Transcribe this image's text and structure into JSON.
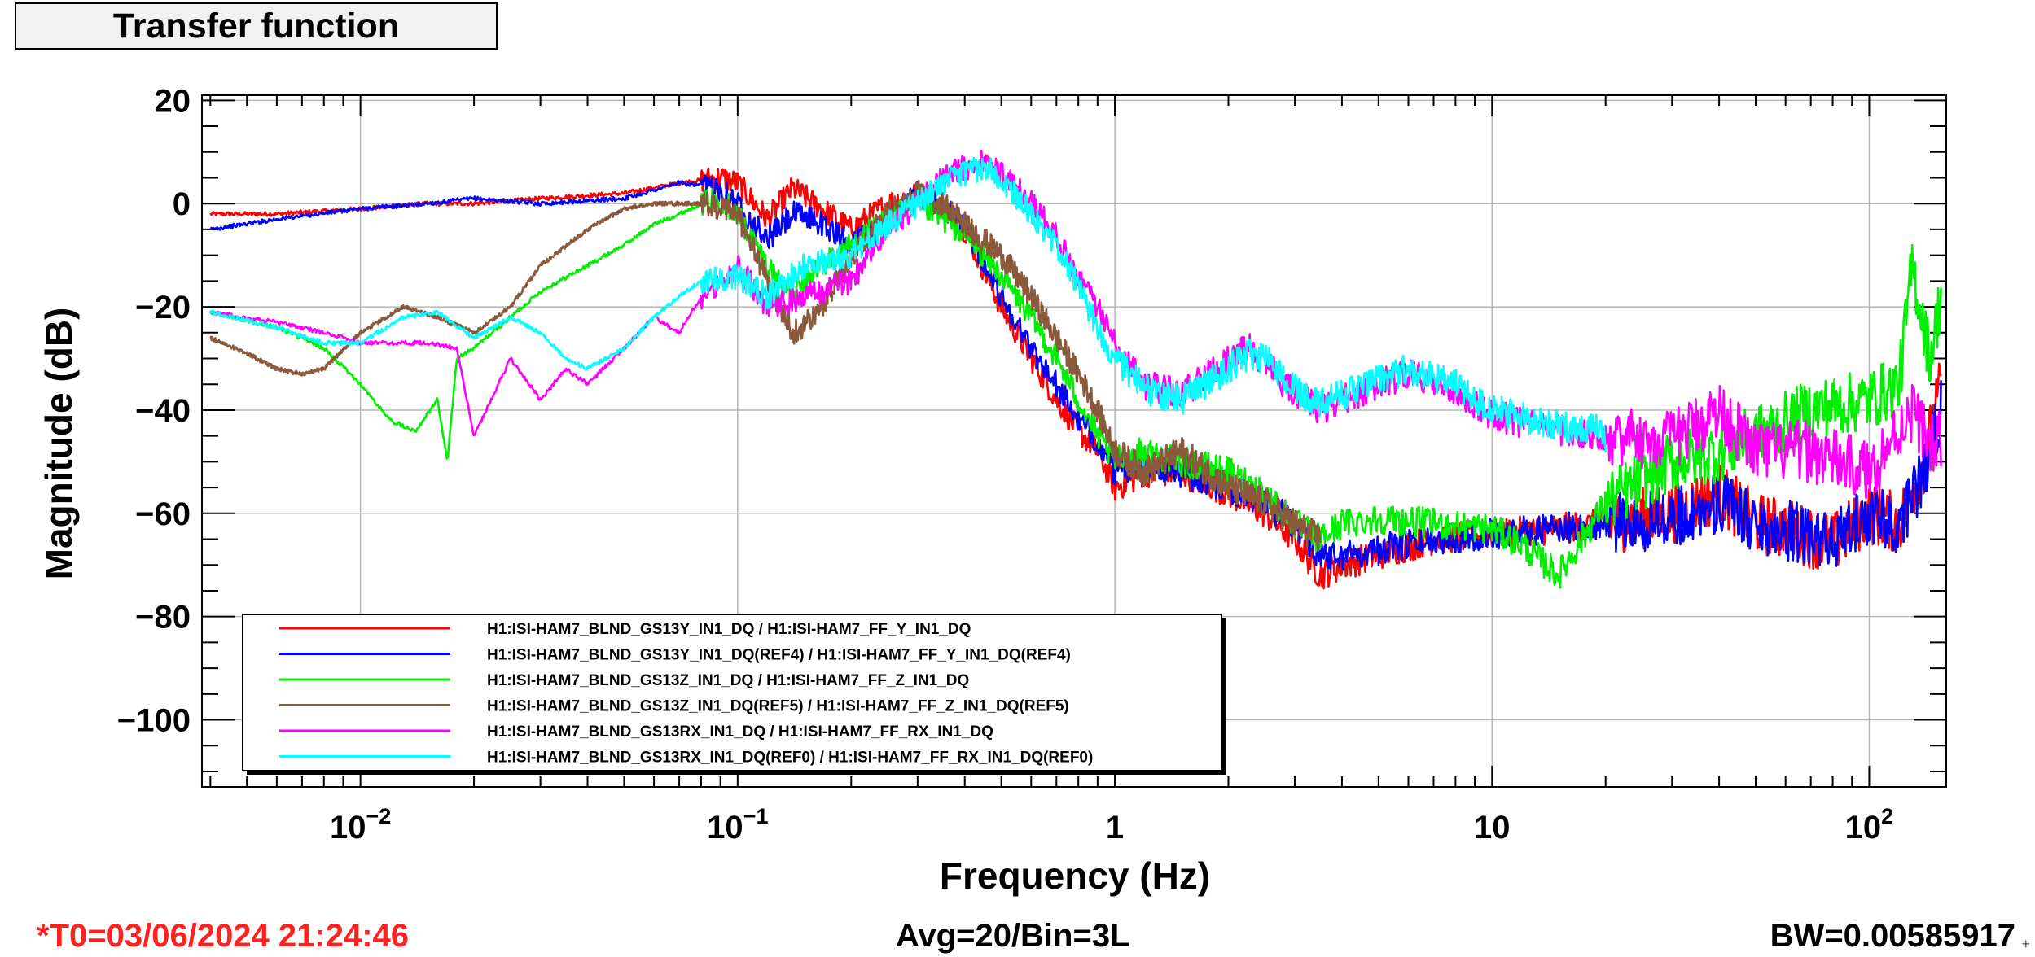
{
  "panel_title": "Transfer function",
  "footer": {
    "t0": "*T0=03/06/2024 21:24:46",
    "avg": "Avg=20/Bin=3L",
    "bw": "BW=0.00585917"
  },
  "colors": {
    "t0_text": "#ff2020",
    "grid": "#b8b8b8"
  },
  "chart_data": {
    "type": "line",
    "xscale": "log",
    "xlabel": "Frequency (Hz)",
    "ylabel": "Magnitude (dB)",
    "xlim": [
      0.0038,
      160
    ],
    "ylim": [
      -113,
      21
    ],
    "grid": true,
    "legend_placement": "bottom-left",
    "x_ticks": [
      {
        "value": 0.01,
        "base": "10",
        "exp": "−2"
      },
      {
        "value": 0.1,
        "base": "10",
        "exp": "−1"
      },
      {
        "value": 1,
        "base": "1",
        "exp": ""
      },
      {
        "value": 10,
        "base": "10",
        "exp": ""
      },
      {
        "value": 100,
        "base": "10",
        "exp": "2"
      }
    ],
    "y_ticks": [
      {
        "value": 20,
        "label": "20"
      },
      {
        "value": 0,
        "label": "0"
      },
      {
        "value": -20,
        "label": "−20"
      },
      {
        "value": -40,
        "label": "−40"
      },
      {
        "value": -60,
        "label": "−60"
      },
      {
        "value": -80,
        "label": "−80"
      },
      {
        "value": -100,
        "label": "−100"
      }
    ],
    "series": [
      {
        "name": "H1:ISI-HAM7_BLND_GS13Y_IN1_DQ / H1:ISI-HAM7_FF_Y_IN1_DQ",
        "color": "#ff0000",
        "x": [
          0.004,
          0.006,
          0.01,
          0.015,
          0.02,
          0.03,
          0.05,
          0.07,
          0.09,
          0.1,
          0.12,
          0.14,
          0.16,
          0.2,
          0.25,
          0.3,
          0.35,
          0.4,
          0.5,
          0.6,
          0.7,
          0.8,
          0.9,
          1.0,
          1.2,
          1.5,
          2.0,
          2.5,
          3.0,
          3.5,
          4.0,
          5.0,
          7.0,
          10,
          15,
          20,
          30,
          40,
          50,
          60,
          80,
          100,
          120,
          140,
          155
        ],
        "y": [
          -2,
          -2,
          -1,
          0,
          0,
          1,
          2,
          4,
          5,
          4,
          -3,
          3,
          0,
          -5,
          0,
          2,
          0,
          -5,
          -20,
          -30,
          -38,
          -44,
          -48,
          -55,
          -52,
          -52,
          -56,
          -60,
          -65,
          -72,
          -70,
          -68,
          -65,
          -64,
          -63,
          -62,
          -60,
          -56,
          -62,
          -63,
          -66,
          -60,
          -62,
          -50,
          -35
        ]
      },
      {
        "name": "H1:ISI-HAM7_BLND_GS13Y_IN1_DQ(REF4) / H1:ISI-HAM7_FF_Y_IN1_DQ(REF4)",
        "color": "#0000ff",
        "x": [
          0.004,
          0.006,
          0.01,
          0.015,
          0.02,
          0.03,
          0.05,
          0.07,
          0.09,
          0.1,
          0.12,
          0.14,
          0.16,
          0.2,
          0.25,
          0.3,
          0.35,
          0.4,
          0.5,
          0.6,
          0.7,
          0.8,
          0.9,
          1.0,
          1.2,
          1.5,
          2.0,
          2.5,
          3.0,
          3.5,
          4.0,
          5.0,
          7.0,
          10,
          15,
          20,
          30,
          40,
          50,
          60,
          80,
          100,
          120,
          140,
          155
        ],
        "y": [
          -5,
          -3,
          -1,
          0,
          1,
          0,
          1,
          4,
          3,
          0,
          -7,
          -2,
          -3,
          -8,
          -3,
          2,
          -1,
          -4,
          -18,
          -28,
          -35,
          -42,
          -46,
          -52,
          -50,
          -52,
          -55,
          -58,
          -62,
          -68,
          -68,
          -67,
          -65,
          -64,
          -63,
          -62,
          -61,
          -58,
          -62,
          -63,
          -66,
          -60,
          -62,
          -52,
          -40
        ]
      },
      {
        "name": "H1:ISI-HAM7_BLND_GS13Z_IN1_DQ / H1:ISI-HAM7_FF_Z_IN1_DQ",
        "color": "#00ee00",
        "x": [
          0.004,
          0.006,
          0.008,
          0.01,
          0.012,
          0.014,
          0.016,
          0.017,
          0.018,
          0.02,
          0.025,
          0.03,
          0.04,
          0.05,
          0.06,
          0.07,
          0.08,
          0.09,
          0.1,
          0.12,
          0.14,
          0.16,
          0.2,
          0.25,
          0.3,
          0.35,
          0.4,
          0.5,
          0.6,
          0.7,
          0.8,
          0.9,
          1.0,
          1.2,
          1.5,
          2.0,
          2.5,
          3.0,
          3.5,
          4.0,
          5.0,
          7.0,
          10,
          12,
          15,
          20,
          30,
          40,
          50,
          70,
          100,
          120,
          130,
          145,
          155
        ],
        "y": [
          -21,
          -24,
          -28,
          -35,
          -42,
          -44,
          -38,
          -50,
          -30,
          -28,
          -22,
          -17,
          -12,
          -8,
          -4,
          -2,
          0,
          1,
          -2,
          -12,
          -18,
          -13,
          -8,
          -3,
          0,
          -3,
          -6,
          -14,
          -22,
          -30,
          -38,
          -45,
          -50,
          -48,
          -50,
          -52,
          -56,
          -62,
          -65,
          -62,
          -61,
          -62,
          -63,
          -66,
          -72,
          -58,
          -50,
          -48,
          -45,
          -40,
          -38,
          -35,
          -12,
          -30,
          -18
        ]
      },
      {
        "name": "H1:ISI-HAM7_BLND_GS13Z_IN1_DQ(REF5) / H1:ISI-HAM7_FF_Z_IN1_DQ(REF5)",
        "color": "#8b5a3c",
        "x": [
          0.004,
          0.005,
          0.006,
          0.007,
          0.008,
          0.01,
          0.013,
          0.016,
          0.02,
          0.025,
          0.03,
          0.04,
          0.05,
          0.06,
          0.08,
          0.1,
          0.12,
          0.14,
          0.16,
          0.2,
          0.25,
          0.3,
          0.35,
          0.4,
          0.5,
          0.6,
          0.7,
          0.8,
          0.9,
          1.0,
          1.2,
          1.5,
          2.0,
          2.5,
          3.0,
          3.5
        ],
        "y": [
          -26,
          -29,
          -32,
          -33,
          -32,
          -25,
          -20,
          -22,
          -25,
          -20,
          -12,
          -5,
          -1,
          0,
          0,
          -2,
          -15,
          -25,
          -22,
          -10,
          -2,
          2,
          0,
          -4,
          -10,
          -18,
          -26,
          -33,
          -40,
          -48,
          -52,
          -48,
          -55,
          -58,
          -62,
          -65
        ]
      },
      {
        "name": "H1:ISI-HAM7_BLND_GS13RX_IN1_DQ / H1:ISI-HAM7_FF_RX_IN1_DQ",
        "color": "#ff00ff",
        "x": [
          0.004,
          0.006,
          0.008,
          0.01,
          0.012,
          0.015,
          0.018,
          0.02,
          0.025,
          0.03,
          0.035,
          0.04,
          0.05,
          0.06,
          0.07,
          0.08,
          0.1,
          0.12,
          0.15,
          0.2,
          0.25,
          0.3,
          0.35,
          0.4,
          0.45,
          0.5,
          0.6,
          0.7,
          0.8,
          0.9,
          1.0,
          1.2,
          1.5,
          2.0,
          2.3,
          2.6,
          3.0,
          3.5,
          4.0,
          5.0,
          6.0,
          8.0,
          10,
          15,
          20,
          30,
          40,
          50,
          70,
          100,
          130,
          150,
          155
        ],
        "y": [
          -21,
          -23,
          -25,
          -27,
          -27,
          -27,
          -28,
          -45,
          -30,
          -38,
          -32,
          -35,
          -28,
          -22,
          -25,
          -18,
          -12,
          -20,
          -18,
          -15,
          -5,
          0,
          5,
          7,
          8,
          6,
          0,
          -6,
          -14,
          -20,
          -26,
          -35,
          -37,
          -30,
          -28,
          -32,
          -37,
          -40,
          -38,
          -35,
          -33,
          -36,
          -41,
          -44,
          -45,
          -46,
          -40,
          -48,
          -48,
          -52,
          -40,
          -48,
          -45
        ]
      },
      {
        "name": "H1:ISI-HAM7_BLND_GS13RX_IN1_DQ(REF0) / H1:ISI-HAM7_FF_RX_IN1_DQ(REF0)",
        "color": "#00ffff",
        "x": [
          0.004,
          0.006,
          0.008,
          0.01,
          0.013,
          0.016,
          0.02,
          0.025,
          0.03,
          0.035,
          0.04,
          0.05,
          0.06,
          0.07,
          0.08,
          0.1,
          0.12,
          0.15,
          0.2,
          0.25,
          0.3,
          0.35,
          0.4,
          0.45,
          0.5,
          0.6,
          0.7,
          0.8,
          0.9,
          1.0,
          1.2,
          1.5,
          2.0,
          2.3,
          2.6,
          3.0,
          3.5,
          4.0,
          5.0,
          6.0,
          8.0,
          10,
          15,
          20
        ],
        "y": [
          -21,
          -24,
          -27,
          -27,
          -22,
          -21,
          -26,
          -22,
          -25,
          -30,
          -32,
          -28,
          -22,
          -18,
          -15,
          -14,
          -18,
          -12,
          -10,
          -4,
          0,
          4,
          6,
          7,
          5,
          -2,
          -8,
          -16,
          -24,
          -30,
          -36,
          -38,
          -32,
          -29,
          -31,
          -36,
          -39,
          -37,
          -34,
          -32,
          -35,
          -40,
          -43,
          -44
        ]
      }
    ]
  }
}
